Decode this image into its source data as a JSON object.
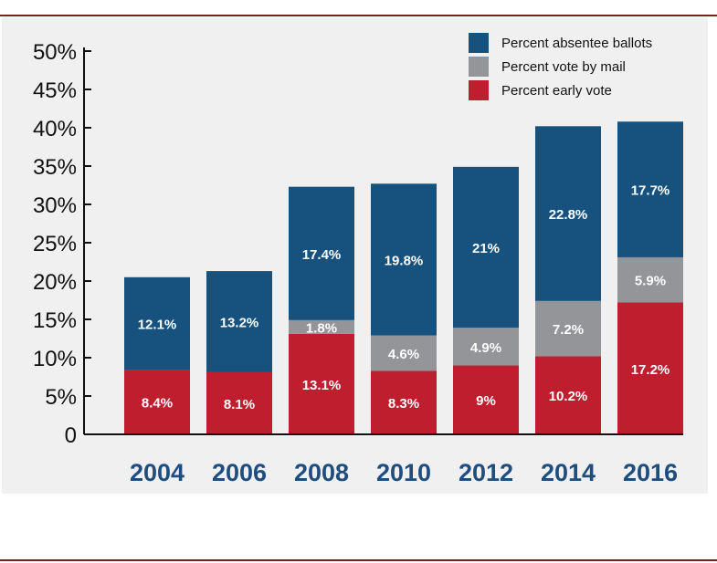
{
  "chart_data": {
    "type": "bar",
    "stacked": true,
    "categories": [
      "2004",
      "2006",
      "2008",
      "2010",
      "2012",
      "2014",
      "2016"
    ],
    "ylim": [
      0,
      50
    ],
    "yticks": [
      "0",
      "5%",
      "10%",
      "15%",
      "20%",
      "25%",
      "30%",
      "35%",
      "40%",
      "45%",
      "50%"
    ],
    "legend_position": "top-right",
    "series": [
      {
        "name": "Percent early vote",
        "color": "#be1e2d",
        "values": [
          8.4,
          8.1,
          13.1,
          8.3,
          9,
          10.2,
          17.2
        ],
        "labels": [
          "8.4%",
          "8.1%",
          "13.1%",
          "8.3%",
          "9%",
          "10.2%",
          "17.2%"
        ]
      },
      {
        "name": "Percent vote by mail",
        "color": "#939598",
        "values": [
          0,
          0,
          1.8,
          4.6,
          4.9,
          7.2,
          5.9
        ],
        "labels": [
          "",
          "",
          "1.8%",
          "4.6%",
          "4.9%",
          "7.2%",
          "5.9%"
        ]
      },
      {
        "name": "Percent absentee ballots",
        "color": "#16527d",
        "values": [
          12.1,
          13.2,
          17.4,
          19.8,
          21,
          22.8,
          17.7
        ],
        "labels": [
          "12.1%",
          "13.2%",
          "17.4%",
          "19.8%",
          "21%",
          "22.8%",
          "17.7%"
        ]
      }
    ],
    "legend_order": [
      "Percent absentee ballots",
      "Percent vote by mail",
      "Percent early vote"
    ]
  }
}
